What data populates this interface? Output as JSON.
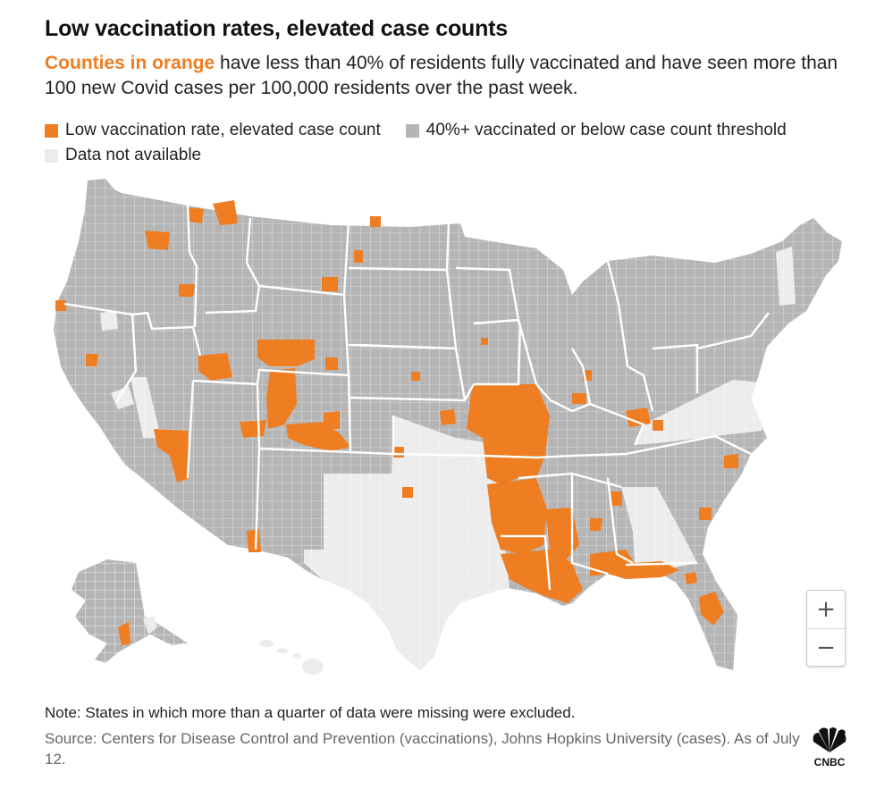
{
  "title": "Low vaccination rates, elevated case counts",
  "subtitle": {
    "highlight": "Counties in orange",
    "rest": " have less than 40% of residents fully vaccinated and have seen more than 100 new Covid cases per 100,000 residents over the past week."
  },
  "legend": [
    {
      "label": "Low vaccination rate, elevated case count",
      "color": "#ef7d22"
    },
    {
      "label": "40%+ vaccinated or below case count threshold",
      "color": "#b5b5b5"
    },
    {
      "label": "Data not available",
      "color": "#ececec"
    }
  ],
  "colors": {
    "orange": "#ef7d22",
    "gray": "#b5b5b5",
    "na": "#ececec",
    "border": "#ffffff"
  },
  "zoom": {
    "in_icon": "plus-icon",
    "in_label": "+",
    "out_icon": "minus-icon",
    "out_label": "−"
  },
  "note": "Note: States in which more than a quarter of data were missing were excluded.",
  "source": "Source: Centers for Disease Control and Prevention (vaccinations), Johns Hopkins University (cases). As of July 12.",
  "logo": {
    "icon": "cnbc-peacock-icon",
    "text": "CNBC"
  }
}
